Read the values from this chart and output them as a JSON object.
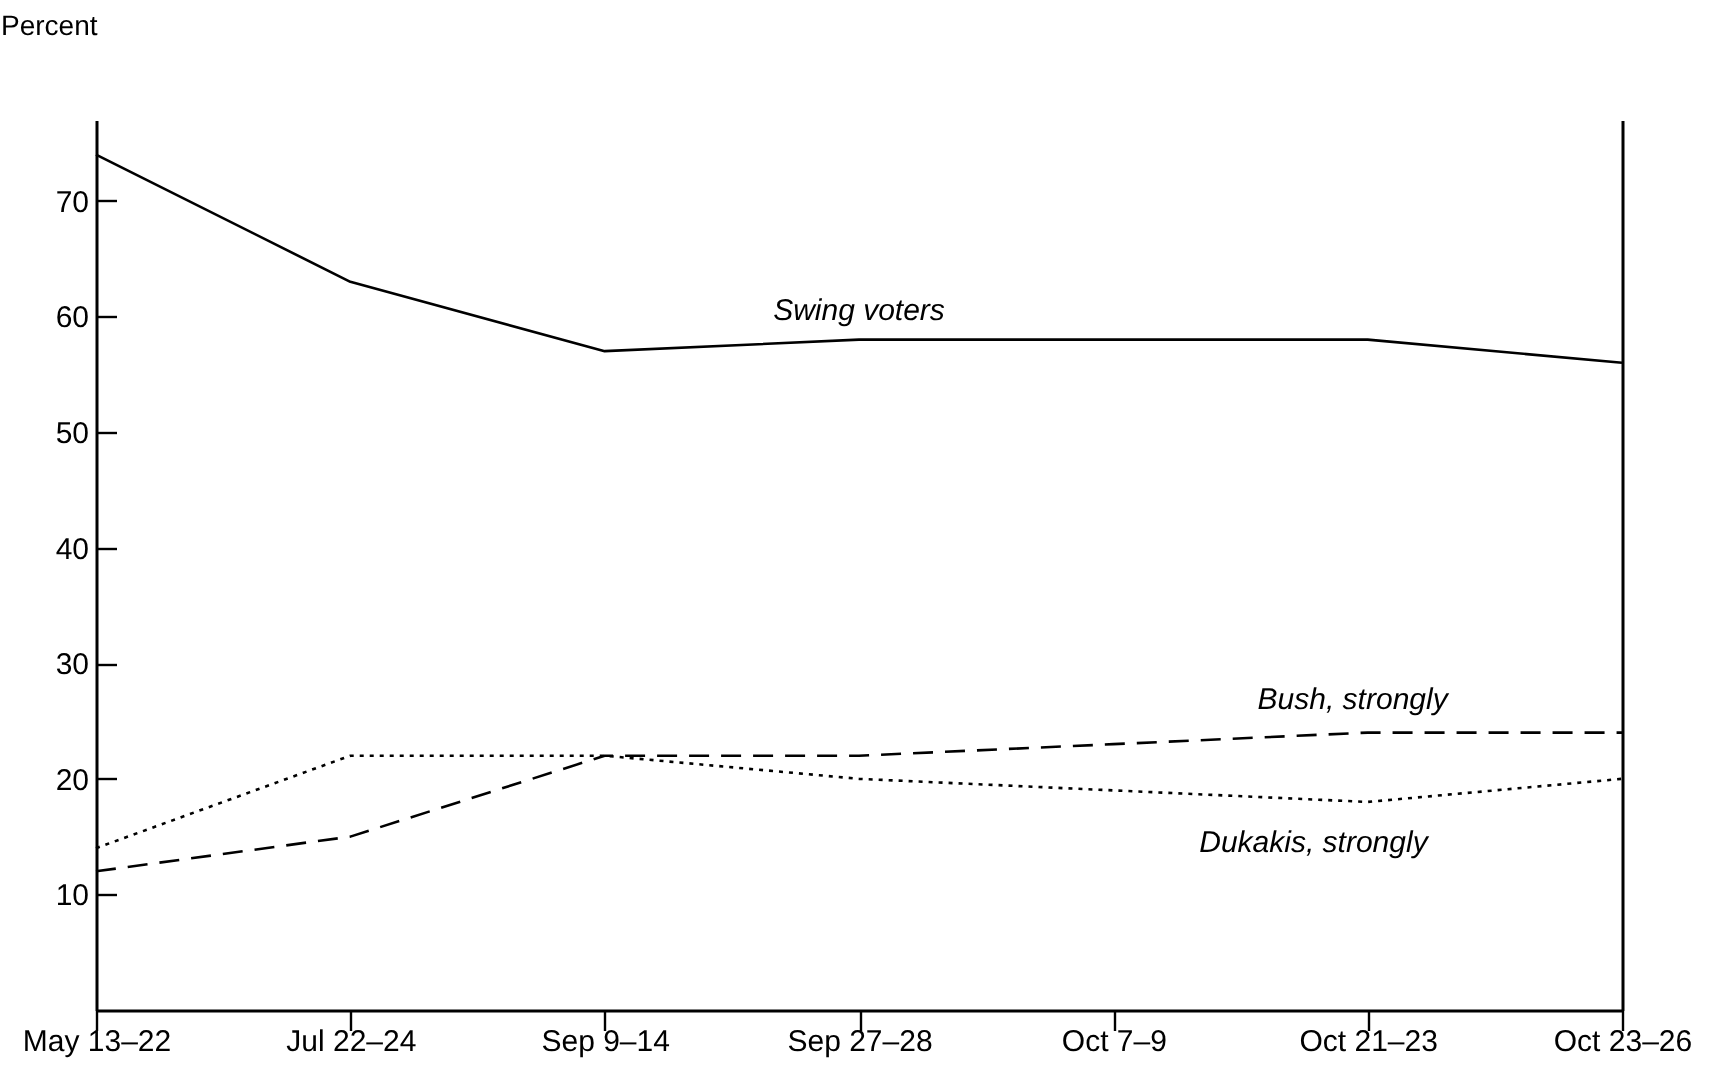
{
  "chart_data": {
    "type": "line",
    "ylabel": "Percent",
    "categories": [
      "May 13–22",
      "Jul 22–24",
      "Sep 9–14",
      "Sep 27–28",
      "Oct 7–9",
      "Oct 21–23",
      "Oct 23–26"
    ],
    "series": [
      {
        "name": "Swing voters",
        "color": "#000000",
        "line_style": "solid",
        "values": [
          74,
          63,
          57,
          58,
          58,
          58,
          56
        ]
      },
      {
        "name": "Bush, strongly",
        "color": "#000000",
        "line_style": "dashed",
        "values": [
          12,
          15,
          22,
          22,
          23,
          24,
          24
        ]
      },
      {
        "name": "Dukakis, strongly",
        "color": "#000000",
        "line_style": "dotted",
        "values": [
          14,
          22,
          22,
          20,
          19,
          18,
          20
        ]
      }
    ],
    "ylim": [
      0,
      77
    ],
    "yticks": [
      10,
      20,
      30,
      40,
      50,
      60,
      70
    ],
    "grid": false,
    "legend": false,
    "marker": "none"
  }
}
